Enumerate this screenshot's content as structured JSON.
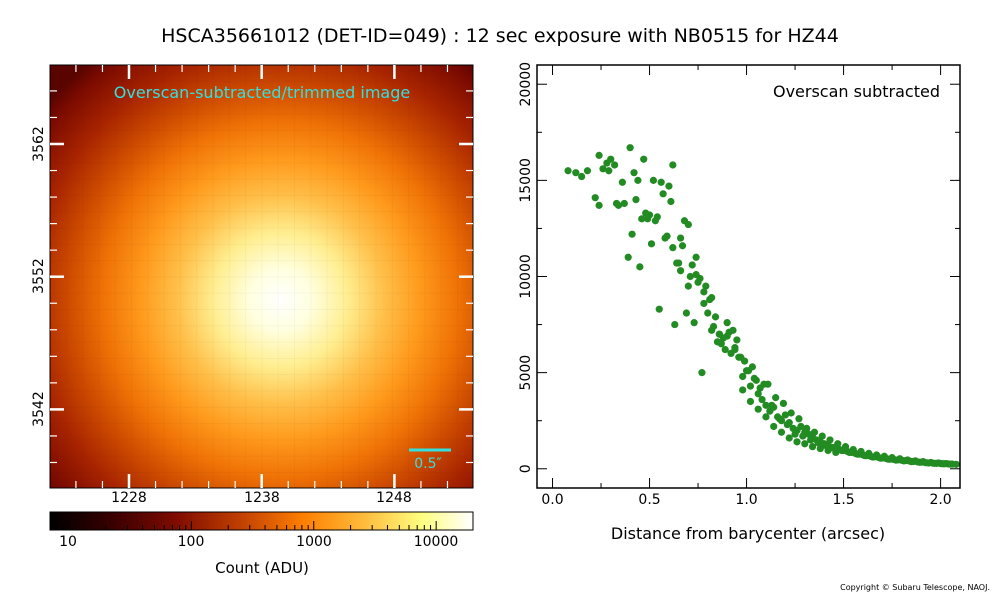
{
  "figure": {
    "title": "HSCA35661012 (DET-ID=049) :  12 sec exposure with NB0515 for HZ44",
    "copyright": "Copyright © Subaru Telescope, NAOJ."
  },
  "colors": {
    "scatter": "#228b22",
    "annotation": "#33e0e0",
    "colormap": "afmhot"
  },
  "image_panel": {
    "annotation": "Overscan-subtracted/trimmed image",
    "scale_bar_label": "0.5″",
    "x_ticks": [
      "1228",
      "1238",
      "1248"
    ],
    "y_ticks": [
      "3562",
      "3552",
      "3542"
    ],
    "colorbar": {
      "tick_labels": [
        "10",
        "100",
        "1000",
        "10000"
      ],
      "label": "Count (ADU)",
      "scale": "log",
      "range": [
        7,
        20000
      ]
    }
  },
  "chart_data": {
    "type": "scatter",
    "annotation": "Overscan subtracted",
    "xlabel": "Distance from barycenter (arcsec)",
    "ylabel": "",
    "xlim": [
      -0.08,
      2.1
    ],
    "ylim": [
      -1000,
      21000
    ],
    "x_tick_labels": [
      "0.0",
      "0.5",
      "1.0",
      "1.5",
      "2.0"
    ],
    "y_tick_labels": [
      "0",
      "5000",
      "10000",
      "15000",
      "20000"
    ],
    "grid": false,
    "series": [
      {
        "x": [
          0.08,
          0.12,
          0.15,
          0.18,
          0.22,
          0.24,
          0.26,
          0.28,
          0.3,
          0.32,
          0.34,
          0.37,
          0.4,
          0.42,
          0.44,
          0.46,
          0.48,
          0.5,
          0.52,
          0.54,
          0.56,
          0.58,
          0.6,
          0.62,
          0.64,
          0.66,
          0.68,
          0.7,
          0.72,
          0.74,
          0.76,
          0.78,
          0.8,
          0.82,
          0.84,
          0.86,
          0.88,
          0.9,
          0.92,
          0.94,
          0.96,
          0.98,
          1.0,
          1.02,
          1.04,
          1.06,
          1.08,
          1.1,
          1.12,
          1.14,
          1.16,
          1.18,
          1.2,
          1.22,
          1.24,
          1.26,
          1.28,
          1.3,
          1.32,
          1.34,
          1.36,
          1.38,
          1.4,
          1.42,
          1.44,
          1.46,
          1.48,
          1.5,
          1.52,
          1.54,
          1.56,
          1.58,
          1.6,
          1.62,
          1.64,
          1.66,
          1.68,
          1.7,
          1.72,
          1.74,
          1.76,
          1.78,
          1.8,
          1.82,
          1.84,
          1.86,
          1.88,
          1.9,
          1.92,
          1.94,
          1.96,
          1.98,
          2.0,
          2.02,
          2.04,
          2.06,
          2.08,
          0.24,
          0.29,
          0.33,
          0.36,
          0.39,
          0.43,
          0.47,
          0.51,
          0.55,
          0.59,
          0.63,
          0.67,
          0.71,
          0.75,
          0.79,
          0.83,
          0.87,
          0.91,
          0.95,
          0.99,
          1.03,
          1.07,
          1.11,
          1.15,
          1.19,
          1.23,
          1.27,
          1.31,
          1.35,
          1.39,
          1.43,
          1.47,
          1.51,
          1.55,
          1.59,
          1.63,
          1.67,
          1.71,
          1.75,
          1.79,
          1.83,
          1.87,
          1.91,
          1.95,
          1.99,
          2.03,
          0.41,
          0.45,
          0.49,
          0.53,
          0.57,
          0.61,
          0.65,
          0.69,
          0.73,
          0.77,
          0.81,
          0.85,
          0.89,
          0.93,
          0.97,
          1.01,
          1.05,
          1.09,
          1.13,
          1.17,
          1.21,
          1.25,
          1.29,
          1.33,
          1.37,
          1.41,
          1.45,
          1.49,
          1.53,
          1.57,
          1.61,
          1.65,
          1.69,
          1.73,
          1.77,
          1.81,
          1.85,
          1.89,
          1.93,
          1.97,
          2.01,
          2.05,
          0.62,
          0.66,
          0.7,
          0.74,
          0.78,
          0.82,
          0.86,
          0.9,
          0.94,
          0.98,
          1.02,
          1.06,
          1.1,
          1.14,
          1.18,
          1.22,
          1.26,
          1.3,
          1.34,
          1.38,
          1.42,
          1.46
        ],
        "y": [
          15500,
          15400,
          15200,
          15500,
          14100,
          16300,
          15600,
          15900,
          16100,
          15800,
          13700,
          13800,
          16700,
          15400,
          15000,
          13000,
          13300,
          13200,
          15000,
          13100,
          14900,
          12000,
          14700,
          11500,
          10700,
          10300,
          12900,
          9500,
          10600,
          10100,
          9900,
          9200,
          8100,
          7200,
          7900,
          7000,
          6800,
          7600,
          6000,
          6200,
          5800,
          4800,
          5100,
          4300,
          4700,
          3900,
          3600,
          3300,
          3000,
          3200,
          2700,
          2500,
          2800,
          2400,
          2100,
          2000,
          2200,
          1900,
          1800,
          1650,
          1500,
          1400,
          1300,
          1250,
          1100,
          1050,
          1000,
          950,
          900,
          850,
          800,
          760,
          720,
          680,
          650,
          620,
          590,
          560,
          530,
          500,
          480,
          460,
          440,
          420,
          400,
          380,
          360,
          340,
          320,
          300,
          290,
          280,
          270,
          260,
          250,
          240,
          230,
          13700,
          15500,
          13800,
          14900,
          11000,
          14000,
          16100,
          11700,
          8300,
          12100,
          7500,
          11600,
          10000,
          9700,
          9500,
          7400,
          6500,
          7100,
          6700,
          5600,
          5300,
          4200,
          4400,
          3700,
          3400,
          2900,
          2600,
          2100,
          1900,
          1700,
          1500,
          1300,
          1150,
          1000,
          900,
          800,
          720,
          650,
          580,
          520,
          460,
          410,
          370,
          330,
          300,
          270,
          12200,
          10500,
          13000,
          12900,
          14300,
          13900,
          10700,
          8100,
          7600,
          5000,
          8800,
          6600,
          6200,
          7200,
          5800,
          5100,
          4600,
          4400,
          3300,
          2600,
          2300,
          1800,
          1700,
          1500,
          1350,
          1200,
          1100,
          950,
          850,
          760,
          680,
          610,
          550,
          500,
          450,
          410,
          370,
          340,
          310,
          280,
          260,
          240,
          15800,
          12000,
          12700,
          11000,
          8600,
          8900,
          7000,
          6900,
          6300,
          4100,
          3500,
          3100,
          2700,
          2200,
          1900,
          1600,
          1400,
          1300,
          1150,
          1050,
          950,
          850
        ]
      }
    ]
  }
}
